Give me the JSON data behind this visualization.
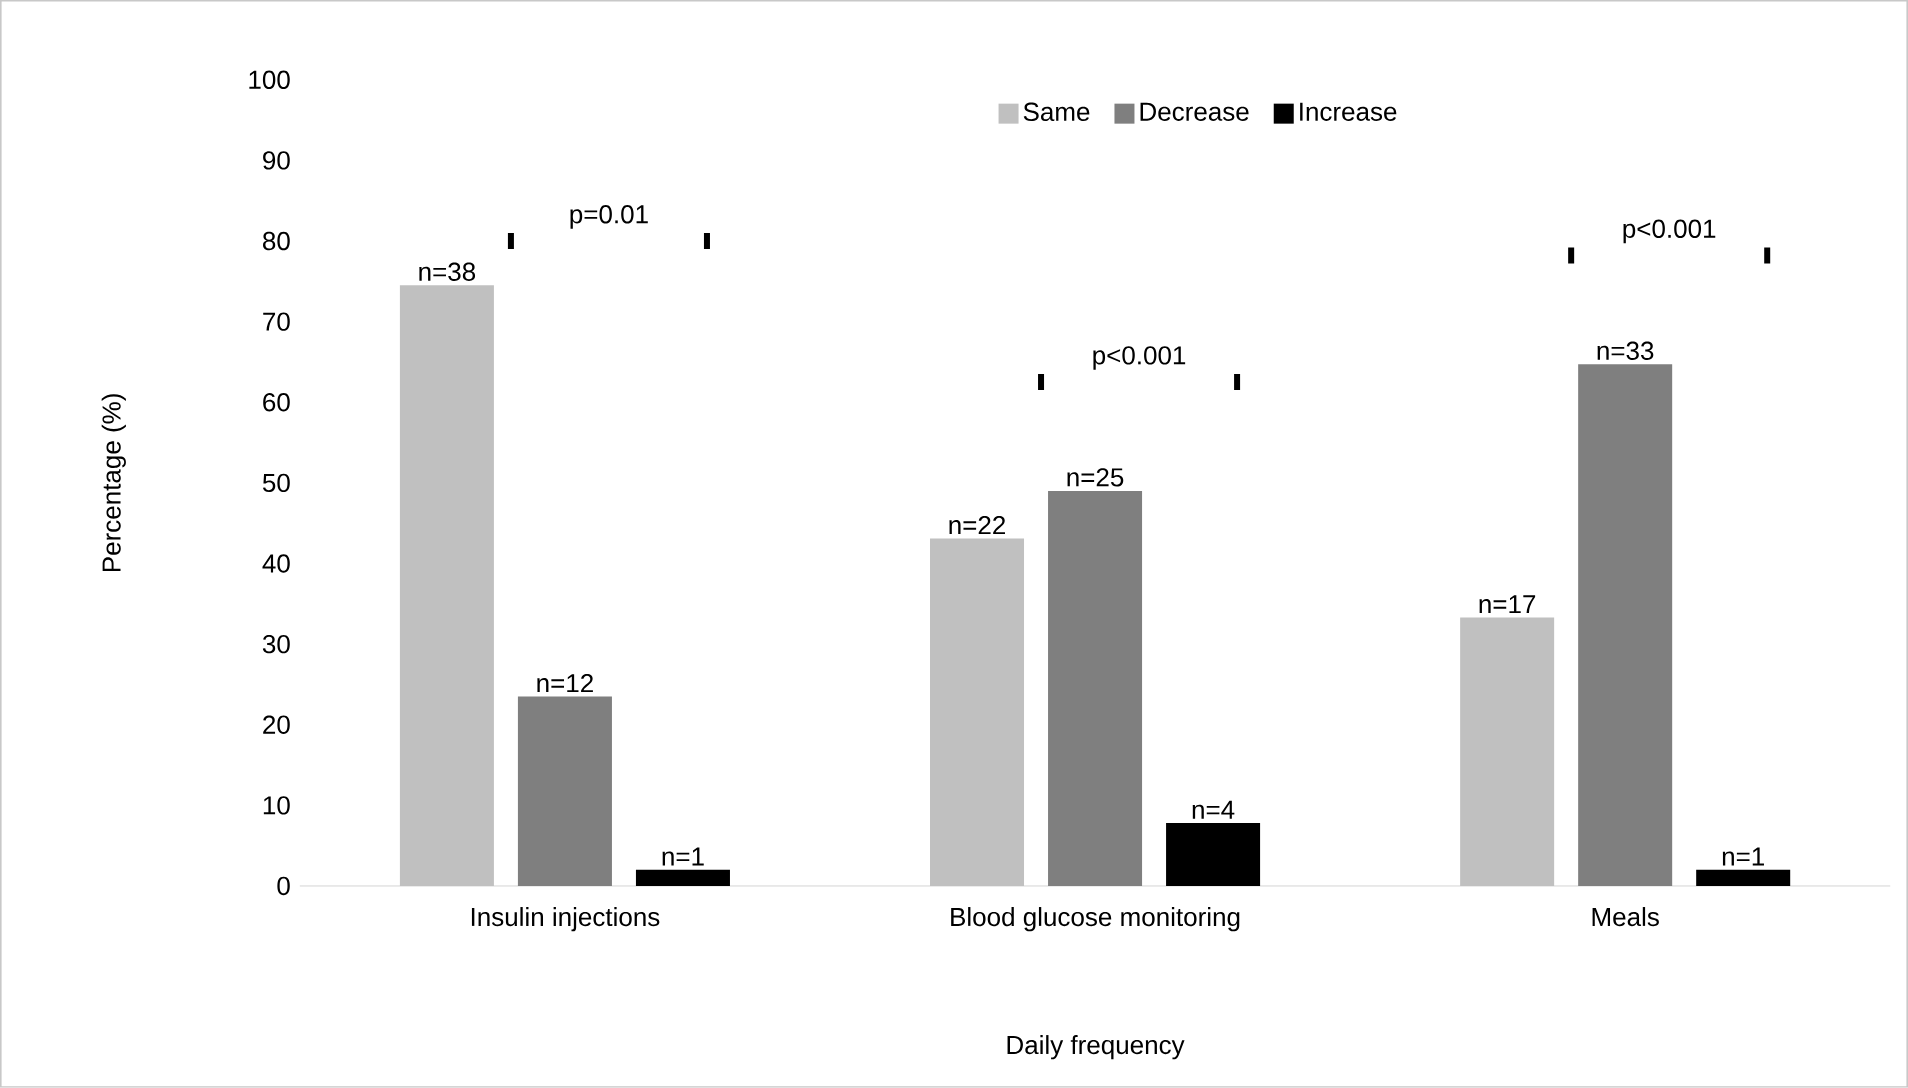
{
  "chart_data": {
    "type": "bar",
    "xlabel": "Daily frequency",
    "ylabel": "Percentage (%)",
    "categories": [
      "Insulin injections",
      "Blood glucose monitoring",
      "Meals"
    ],
    "series": [
      {
        "name": "Same",
        "color": "#c0c0c0",
        "values": [
          74.5,
          43.1,
          33.3
        ]
      },
      {
        "name": "Decrease",
        "color": "#7f7f7f",
        "values": [
          23.5,
          49.0,
          64.7
        ]
      },
      {
        "name": "Increase",
        "color": "#000000",
        "values": [
          2.0,
          7.8,
          2.0
        ]
      }
    ],
    "ylim": [
      0,
      100
    ],
    "yticks": [
      0,
      10,
      20,
      30,
      40,
      50,
      60,
      70,
      80,
      90,
      100
    ],
    "grid": false,
    "legend": "top",
    "annotations": [
      "p=0.01",
      "p<0.001",
      "p<0.001",
      "n=38",
      "n=12",
      "n=1",
      "n=22",
      "n=25",
      "n=4",
      "n=17",
      "n=33",
      "n=1"
    ]
  }
}
